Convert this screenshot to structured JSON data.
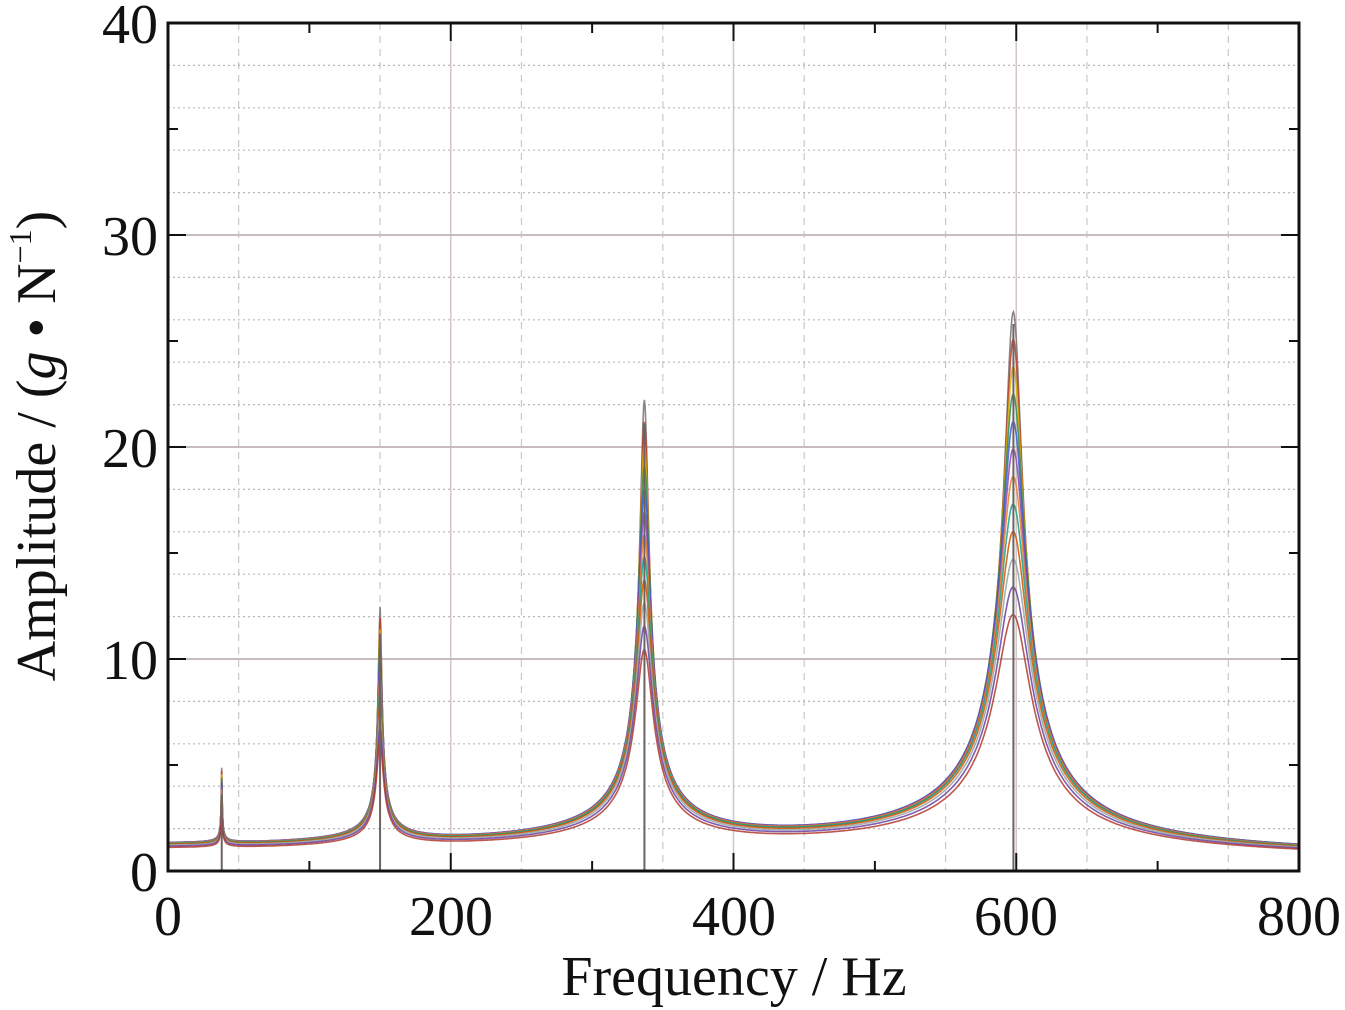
{
  "chart_data": {
    "type": "line",
    "title": "",
    "xlabel": "Frequency / Hz",
    "ylabel_parts": {
      "prefix": "Amplitude / (",
      "g": "g",
      "dot": " • N",
      "sup": "−1",
      "suffix": ")"
    },
    "xlim": [
      0,
      800
    ],
    "ylim": [
      0,
      40
    ],
    "x_ticks": [
      "0",
      "200",
      "400",
      "600",
      "800"
    ],
    "y_ticks": [
      "0",
      "10",
      "20",
      "30",
      "40"
    ],
    "grid": true,
    "legend": "none",
    "peaks": [
      {
        "freq": 38,
        "amplitude": 3.6
      },
      {
        "freq": 150,
        "amplitude": 11.2
      },
      {
        "freq": 337,
        "amplitude": 21.1
      },
      {
        "freq": 598,
        "amplitude": 25.8
      }
    ],
    "series_colors": [
      "#7a7070",
      "#c0392b",
      "#d4b000",
      "#2e8b57",
      "#3b5bd6",
      "#8e44ad",
      "#e67e22",
      "#16a085",
      "#d35400",
      "#95a5a6",
      "#6b3fa0",
      "#b03a2e"
    ],
    "series_count": 12
  }
}
